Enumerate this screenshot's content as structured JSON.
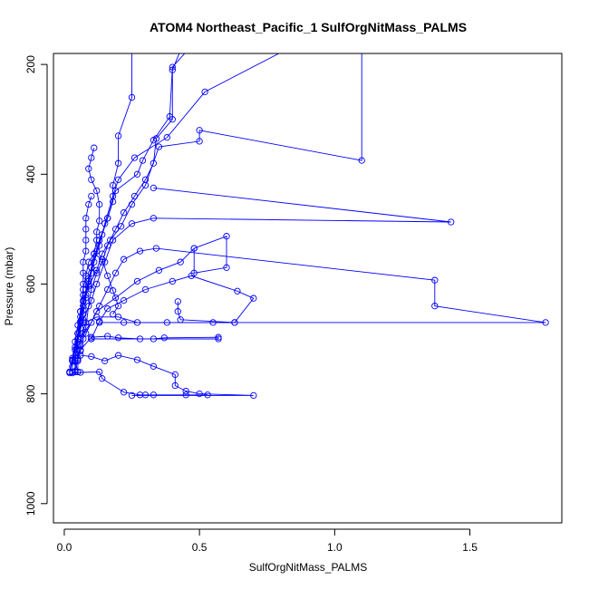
{
  "chart_data": {
    "type": "line",
    "title": "ATOM4 Northeast_Pacific_1 SulfOrgNitMass_PALMS",
    "xlabel": "SulfOrgNitMass_PALMS",
    "ylabel": "Pressure (mbar)",
    "xlim": [
      -0.04,
      1.84
    ],
    "ylim": [
      1035,
      180
    ],
    "y_inverted": true,
    "x_ticks": [
      0.0,
      0.5,
      1.0,
      1.5
    ],
    "x_tick_labels": [
      "0.0",
      "0.5",
      "1.0",
      "1.5"
    ],
    "y_ticks": [
      200,
      400,
      600,
      800,
      1000
    ],
    "y_tick_labels": [
      "200",
      "400",
      "600",
      "800",
      "1000"
    ],
    "grid": false,
    "legend": "none",
    "color": "#0000ff",
    "marker": "open-circle",
    "series": [
      {
        "points": [
          [
            0.03,
            740
          ],
          [
            0.03,
            760
          ],
          [
            0.05,
            760
          ],
          [
            0.05,
            738
          ],
          [
            0.06,
            722
          ],
          [
            0.07,
            700
          ],
          [
            0.08,
            678
          ],
          [
            0.09,
            640
          ],
          [
            0.1,
            610
          ],
          [
            0.12,
            580
          ],
          [
            0.14,
            560
          ],
          [
            0.16,
            530
          ],
          [
            0.19,
            500
          ],
          [
            0.22,
            470
          ],
          [
            0.26,
            440
          ],
          [
            0.3,
            410
          ],
          [
            0.33,
            380
          ],
          [
            0.34,
            335
          ],
          [
            0.4,
            300
          ],
          [
            0.4,
            210
          ],
          [
            0.45,
            150
          ]
        ]
      },
      {
        "points": [
          [
            0.02,
            760
          ],
          [
            0.03,
            740
          ],
          [
            0.05,
            700
          ],
          [
            0.06,
            670
          ],
          [
            0.07,
            640
          ],
          [
            0.08,
            610
          ],
          [
            0.1,
            580
          ],
          [
            0.12,
            540
          ],
          [
            0.14,
            510
          ],
          [
            0.16,
            480
          ],
          [
            0.18,
            450
          ],
          [
            0.18,
            420
          ],
          [
            0.2,
            380
          ],
          [
            0.2,
            330
          ],
          [
            0.25,
            260
          ],
          [
            0.25,
            150
          ]
        ]
      },
      {
        "points": [
          [
            0.03,
            750
          ],
          [
            0.04,
            720
          ],
          [
            0.05,
            690
          ],
          [
            0.06,
            660
          ],
          [
            0.07,
            630
          ],
          [
            0.09,
            600
          ],
          [
            0.1,
            570
          ],
          [
            0.13,
            520
          ],
          [
            0.16,
            480
          ],
          [
            0.19,
            430
          ],
          [
            0.27,
            400
          ],
          [
            0.29,
            375
          ],
          [
            0.33,
            338
          ],
          [
            0.39,
            295
          ],
          [
            0.4,
            205
          ],
          [
            0.5,
            150
          ]
        ]
      },
      {
        "points": [
          [
            0.02,
            760
          ],
          [
            0.03,
            735
          ],
          [
            0.04,
            705
          ],
          [
            0.05,
            675
          ],
          [
            0.06,
            650
          ],
          [
            0.08,
            620
          ],
          [
            0.09,
            590
          ],
          [
            0.11,
            560
          ],
          [
            0.13,
            530
          ],
          [
            0.15,
            490
          ],
          [
            0.18,
            440
          ],
          [
            0.2,
            410
          ],
          [
            0.26,
            370
          ],
          [
            0.38,
            333
          ],
          [
            0.52,
            250
          ],
          [
            0.95,
            140
          ]
        ]
      },
      {
        "points": [
          [
            0.04,
            760
          ],
          [
            0.04,
            735
          ],
          [
            0.05,
            700
          ],
          [
            0.06,
            668
          ],
          [
            0.07,
            632
          ],
          [
            0.09,
            604
          ],
          [
            0.12,
            575
          ],
          [
            0.14,
            545
          ],
          [
            0.17,
            520
          ],
          [
            0.21,
            495
          ],
          [
            0.25,
            455
          ],
          [
            0.3,
            420
          ],
          [
            0.35,
            350
          ],
          [
            0.5,
            340
          ],
          [
            0.5,
            320
          ],
          [
            1.1,
            375
          ],
          [
            1.1,
            150
          ]
        ]
      },
      {
        "points": [
          [
            0.05,
            740
          ],
          [
            0.05,
            700
          ],
          [
            0.07,
            665
          ],
          [
            0.1,
            630
          ],
          [
            0.12,
            600
          ],
          [
            0.15,
            560
          ],
          [
            0.18,
            520
          ],
          [
            0.25,
            490
          ],
          [
            0.33,
            480
          ],
          [
            1.43,
            487
          ],
          [
            0.33,
            425
          ]
        ]
      },
      {
        "points": [
          [
            0.04,
            760
          ],
          [
            0.05,
            735
          ],
          [
            0.06,
            710
          ],
          [
            0.07,
            690
          ],
          [
            0.1,
            670
          ],
          [
            0.13,
            640
          ],
          [
            0.16,
            610
          ],
          [
            0.19,
            580
          ],
          [
            0.22,
            555
          ],
          [
            0.28,
            540
          ],
          [
            0.34,
            535
          ],
          [
            1.37,
            593
          ],
          [
            1.37,
            640
          ],
          [
            1.78,
            670
          ],
          [
            0.22,
            670
          ],
          [
            0.13,
            670
          ]
        ]
      },
      {
        "points": [
          [
            0.03,
            740
          ],
          [
            0.06,
            720
          ],
          [
            0.1,
            697
          ],
          [
            0.16,
            695
          ],
          [
            0.2,
            698
          ],
          [
            0.28,
            700
          ],
          [
            0.33,
            700
          ],
          [
            0.37,
            698
          ],
          [
            0.57,
            697
          ],
          [
            0.57,
            700
          ],
          [
            0.1,
            700
          ]
        ]
      },
      {
        "points": [
          [
            0.06,
            730
          ],
          [
            0.1,
            732
          ],
          [
            0.15,
            740
          ],
          [
            0.2,
            730
          ],
          [
            0.27,
            738
          ],
          [
            0.33,
            750
          ],
          [
            0.41,
            765
          ],
          [
            0.41,
            785
          ],
          [
            0.45,
            795
          ],
          [
            0.5,
            800
          ],
          [
            0.7,
            803
          ],
          [
            0.25,
            803
          ]
        ]
      },
      {
        "points": [
          [
            0.03,
            762
          ],
          [
            0.06,
            761
          ],
          [
            0.13,
            760
          ],
          [
            0.14,
            772
          ],
          [
            0.22,
            797
          ],
          [
            0.28,
            802
          ],
          [
            0.33,
            802
          ],
          [
            0.45,
            802
          ],
          [
            0.53,
            802
          ],
          [
            0.3,
            802
          ]
        ]
      },
      {
        "points": [
          [
            0.1,
            700
          ],
          [
            0.13,
            668
          ],
          [
            0.16,
            645
          ],
          [
            0.22,
            630
          ],
          [
            0.3,
            610
          ],
          [
            0.4,
            595
          ],
          [
            0.47,
            585
          ],
          [
            0.64,
            613
          ],
          [
            0.7,
            626
          ],
          [
            0.63,
            670
          ],
          [
            0.43,
            665
          ],
          [
            0.42,
            650
          ],
          [
            0.42,
            632
          ]
        ]
      },
      {
        "points": [
          [
            0.08,
            690
          ],
          [
            0.12,
            650
          ],
          [
            0.19,
            625
          ],
          [
            0.27,
            595
          ],
          [
            0.35,
            575
          ],
          [
            0.43,
            560
          ],
          [
            0.48,
            535
          ],
          [
            0.48,
            580
          ],
          [
            0.6,
            570
          ],
          [
            0.6,
            513
          ],
          [
            0.48,
            535
          ]
        ]
      },
      {
        "points": [
          [
            0.05,
            720
          ],
          [
            0.06,
            700
          ],
          [
            0.08,
            670
          ],
          [
            0.12,
            660
          ],
          [
            0.2,
            660
          ],
          [
            0.27,
            670
          ],
          [
            0.38,
            670
          ],
          [
            0.55,
            670
          ],
          [
            0.63,
            670
          ]
        ]
      },
      {
        "points": [
          [
            0.04,
            740
          ],
          [
            0.05,
            690
          ],
          [
            0.06,
            650
          ],
          [
            0.07,
            610
          ],
          [
            0.08,
            585
          ],
          [
            0.09,
            560
          ],
          [
            0.11,
            545
          ],
          [
            0.14,
            555
          ],
          [
            0.16,
            585
          ],
          [
            0.18,
            612
          ],
          [
            0.2,
            640
          ],
          [
            0.18,
            655
          ]
        ]
      },
      {
        "points": [
          [
            0.05,
            760
          ],
          [
            0.04,
            740
          ],
          [
            0.05,
            705
          ],
          [
            0.06,
            680
          ],
          [
            0.07,
            655
          ],
          [
            0.08,
            625
          ],
          [
            0.09,
            595
          ],
          [
            0.1,
            570
          ],
          [
            0.11,
            545
          ],
          [
            0.12,
            520
          ],
          [
            0.12,
            505
          ],
          [
            0.13,
            485
          ],
          [
            0.13,
            455
          ],
          [
            0.12,
            430
          ],
          [
            0.1,
            410
          ],
          [
            0.09,
            390
          ],
          [
            0.1,
            370
          ],
          [
            0.11,
            352
          ]
        ]
      },
      {
        "points": [
          [
            0.02,
            762
          ],
          [
            0.03,
            738
          ],
          [
            0.04,
            715
          ],
          [
            0.05,
            690
          ],
          [
            0.07,
            670
          ],
          [
            0.07,
            648
          ],
          [
            0.07,
            620
          ],
          [
            0.07,
            600
          ],
          [
            0.07,
            580
          ],
          [
            0.07,
            560
          ],
          [
            0.08,
            540
          ],
          [
            0.08,
            520
          ],
          [
            0.08,
            500
          ],
          [
            0.08,
            480
          ],
          [
            0.09,
            455
          ],
          [
            0.1,
            440
          ]
        ]
      }
    ]
  }
}
